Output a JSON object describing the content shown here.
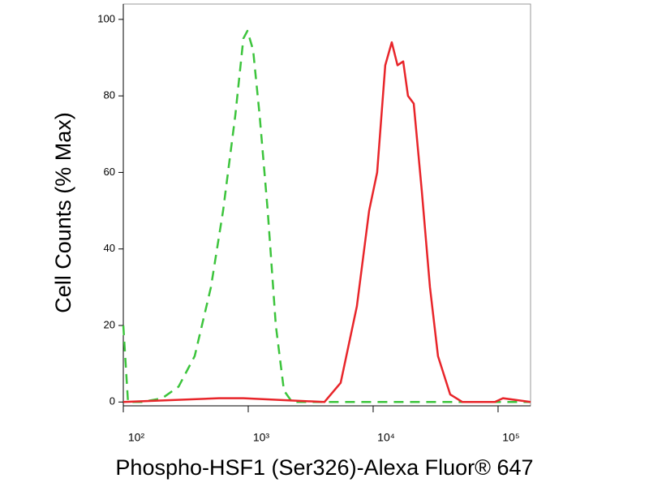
{
  "chart_data": {
    "type": "line",
    "xlabel": "Phospho-HSF1 (Ser326)-Alexa Fluor® 647",
    "ylabel": "Cell Counts (% Max)",
    "xscale": "log",
    "xlim": [
      100,
      182000
    ],
    "ylim": [
      -1,
      104
    ],
    "xticks": [
      {
        "value": 100,
        "label": "10²"
      },
      {
        "value": 1000,
        "label": "10³"
      },
      {
        "value": 10000,
        "label": "10⁴"
      },
      {
        "value": 100000,
        "label": "10⁵"
      }
    ],
    "yticks": [
      0,
      20,
      40,
      60,
      80,
      100
    ],
    "series": [
      {
        "color": "#3cc43c",
        "dash": true,
        "x": [
          100,
          109,
          141,
          205,
          277,
          373,
          503,
          629,
          788,
          915,
          986,
          1094,
          1233,
          1432,
          1663,
          1932,
          2244,
          182000
        ],
        "values": [
          20,
          0,
          0,
          1,
          4,
          12,
          30,
          50,
          75,
          95,
          97,
          92,
          75,
          50,
          20,
          3,
          0,
          0
        ]
      },
      {
        "color": "#e8252a",
        "dash": false,
        "x": [
          100,
          583,
          915,
          4074,
          5495,
          7413,
          9290,
          10770,
          12500,
          14090,
          15670,
          17390,
          19010,
          21130,
          24530,
          28500,
          33040,
          41370,
          51790,
          94200,
          109400,
          182000
        ],
        "values": [
          0,
          1,
          1,
          0,
          5,
          25,
          50,
          60,
          88,
          94,
          88,
          89,
          80,
          78,
          55,
          30,
          12,
          2,
          0,
          0,
          1,
          0
        ]
      }
    ]
  }
}
